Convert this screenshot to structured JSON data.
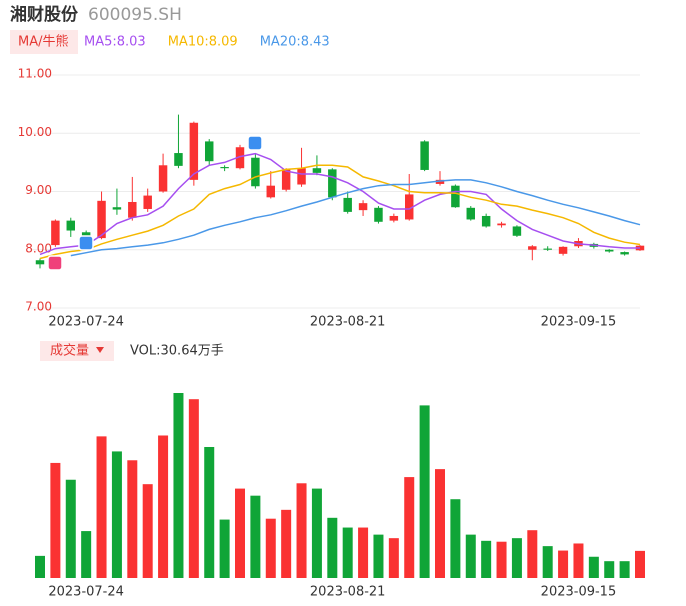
{
  "chart_data": {
    "type": "candlestick",
    "title": "湘财股份",
    "code": "600095.SH",
    "indicator_label": "MA/牛熊",
    "categories": [
      null,
      null,
      null,
      "2023-07-24",
      null,
      null,
      null,
      null,
      null,
      null,
      null,
      null,
      null,
      null,
      null,
      null,
      null,
      null,
      null,
      null,
      "2023-08-21",
      null,
      null,
      null,
      null,
      null,
      null,
      null,
      null,
      null,
      null,
      null,
      null,
      null,
      null,
      "2023-09-15",
      null,
      null,
      null,
      null
    ],
    "open": [
      7.82,
      8.08,
      8.5,
      8.3,
      8.2,
      8.73,
      8.55,
      8.7,
      9.0,
      9.66,
      9.2,
      9.86,
      9.42,
      9.4,
      9.58,
      8.9,
      9.03,
      9.12,
      9.4,
      9.38,
      8.89,
      8.68,
      8.72,
      8.5,
      8.52,
      9.86,
      9.13,
      9.1,
      8.72,
      8.58,
      8.42,
      8.4,
      8.0,
      8.02,
      7.93,
      8.06,
      8.1,
      8.0,
      7.96,
      7.99
    ],
    "high": [
      7.85,
      8.52,
      8.55,
      8.33,
      9.0,
      9.05,
      9.25,
      9.05,
      9.65,
      10.32,
      10.2,
      9.9,
      9.45,
      9.8,
      9.65,
      9.35,
      9.4,
      9.75,
      9.62,
      9.4,
      9.0,
      8.85,
      8.75,
      8.62,
      9.3,
      9.88,
      9.35,
      9.12,
      8.75,
      8.62,
      8.48,
      8.42,
      8.08,
      8.06,
      8.06,
      8.2,
      8.12,
      8.01,
      7.97,
      8.08
    ],
    "low": [
      7.68,
      8.05,
      8.22,
      8.05,
      8.18,
      8.6,
      8.5,
      8.65,
      8.98,
      9.4,
      9.1,
      9.45,
      9.35,
      9.38,
      9.05,
      8.88,
      9.0,
      9.08,
      9.28,
      8.85,
      8.62,
      8.58,
      8.45,
      8.47,
      8.5,
      9.35,
      9.1,
      8.72,
      8.5,
      8.38,
      8.38,
      8.22,
      7.82,
      7.98,
      7.9,
      8.03,
      8.02,
      7.95,
      7.9,
      7.98
    ],
    "close": [
      7.75,
      8.5,
      8.33,
      8.17,
      8.84,
      8.69,
      8.82,
      8.93,
      9.45,
      9.44,
      10.18,
      9.52,
      9.4,
      9.76,
      9.09,
      9.1,
      9.38,
      9.4,
      9.32,
      8.9,
      8.65,
      8.8,
      8.48,
      8.58,
      8.95,
      9.37,
      9.2,
      8.73,
      8.52,
      8.4,
      8.45,
      8.24,
      8.06,
      8.0,
      8.05,
      8.15,
      8.05,
      7.97,
      7.92,
      8.07
    ],
    "series": [
      {
        "name": "MA5:8.03",
        "color": "#a64ff0",
        "values": [
          7.92,
          8.02,
          8.05,
          8.08,
          8.25,
          8.45,
          8.55,
          8.6,
          8.75,
          9.05,
          9.3,
          9.45,
          9.5,
          9.6,
          9.65,
          9.55,
          9.35,
          9.3,
          9.3,
          9.25,
          9.15,
          9.0,
          8.8,
          8.7,
          8.7,
          8.85,
          8.95,
          9.0,
          9.0,
          8.95,
          8.7,
          8.5,
          8.35,
          8.25,
          8.15,
          8.1,
          8.08,
          8.05,
          8.03,
          8.03
        ]
      },
      {
        "name": "MA10:8.09",
        "color": "#f5b800",
        "values": [
          7.85,
          7.92,
          7.97,
          8.0,
          8.1,
          8.18,
          8.25,
          8.32,
          8.42,
          8.58,
          8.7,
          8.95,
          9.05,
          9.12,
          9.25,
          9.32,
          9.38,
          9.4,
          9.45,
          9.45,
          9.42,
          9.25,
          9.18,
          9.1,
          9.0,
          8.98,
          8.98,
          8.97,
          8.9,
          8.85,
          8.78,
          8.75,
          8.68,
          8.62,
          8.55,
          8.45,
          8.3,
          8.2,
          8.13,
          8.09
        ]
      },
      {
        "name": "MA20:8.43",
        "color": "#4a98e8",
        "values": [
          null,
          null,
          7.9,
          7.95,
          8.0,
          8.02,
          8.05,
          8.08,
          8.12,
          8.18,
          8.25,
          8.35,
          8.42,
          8.48,
          8.55,
          8.6,
          8.67,
          8.75,
          8.82,
          8.9,
          8.98,
          9.05,
          9.1,
          9.12,
          9.12,
          9.15,
          9.18,
          9.2,
          9.2,
          9.15,
          9.08,
          9.0,
          8.93,
          8.85,
          8.78,
          8.72,
          8.65,
          8.58,
          8.5,
          8.43
        ]
      }
    ],
    "ylim": [
      7,
      11
    ],
    "yticks": [
      {
        "value": 7,
        "label": "7.00"
      },
      {
        "value": 8,
        "label": "8.00"
      },
      {
        "value": 9,
        "label": "9.00"
      },
      {
        "value": 10,
        "label": "10.00"
      },
      {
        "value": 11,
        "label": "11.00"
      }
    ],
    "grid": true,
    "up_color": "#fa3232",
    "down_color": "#10a537",
    "volume": {
      "title": "成交量",
      "readout": "VOL:30.64万手",
      "values": [
        25,
        130,
        111,
        53,
        160,
        143,
        133,
        106,
        161,
        209,
        202,
        148,
        66,
        101,
        93,
        67,
        77,
        107,
        101,
        68,
        57,
        57,
        49,
        45,
        114,
        195,
        123,
        89,
        49,
        42,
        41,
        45,
        54,
        36,
        31,
        39,
        24,
        19,
        19,
        30.64
      ]
    }
  }
}
